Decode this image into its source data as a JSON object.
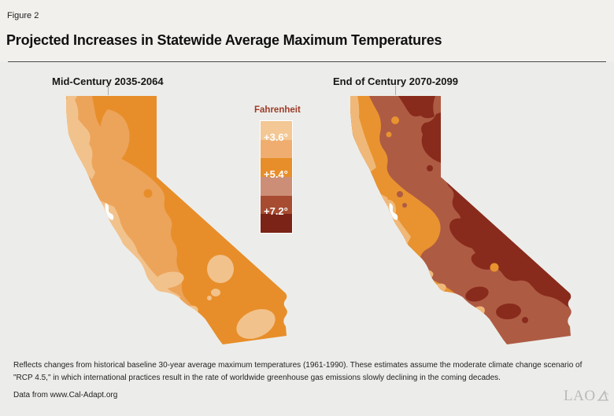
{
  "figure": {
    "label": "Figure 2",
    "title": "Projected Increases in Statewide Average Maximum Temperatures"
  },
  "maps": {
    "left": {
      "title": "Mid-Century 2035-2064"
    },
    "right": {
      "title": "End of Century 2070-2099"
    }
  },
  "legend": {
    "title": "Fahrenheit",
    "labels": [
      "+3.6°",
      "+5.4°",
      "+7.2°"
    ]
  },
  "notes": {
    "body": "Reflects changes from historical baseline 30-year average maximum temperatures (1961-1990). These estimates assume the moderate climate change scenario of \"RCP 4.5,\" in which international practices result in the rate of worldwide greenhouse gas emissions slowly declining in the coming decades.",
    "source": "Data from www.Cal-Adapt.org"
  },
  "logo_text": "LAO",
  "palette": {
    "background": "#ECEDEA",
    "header_background": "#F2F0ED",
    "rule": "#4A4A4A",
    "legend_title_color": "#9E3A28",
    "legend_bands": [
      "#F3C895",
      "#EFAE6F",
      "#E78E2A",
      "#CC8E77",
      "#A74B31",
      "#7B2316"
    ],
    "left_map": {
      "light": "#F2C28C",
      "base": "#ECA45B",
      "dark": "#E78E2A",
      "bay": "#FDFDFC"
    },
    "right_map": {
      "light": "#F0B878",
      "orange": "#E8932F",
      "base": "#AE5B44",
      "dark": "#882B1C",
      "bay": "#FDFDFC"
    },
    "logo_color": "#B7BABA"
  },
  "chart_data": {
    "type": "heatmap",
    "title": "Projected Increases in Statewide Average Maximum Temperatures",
    "geography": "California (two state maps)",
    "unit": "degrees Fahrenheit above 1961-1990 baseline",
    "legend_title": "Fahrenheit",
    "scale_ticks": [
      "+3.6°",
      "+5.4°",
      "+7.2°"
    ],
    "scale_values_f": [
      3.6,
      5.4,
      7.2
    ],
    "legend_band_colors": [
      "#F3C895",
      "#EFAE6F",
      "#E78E2A",
      "#CC8E77",
      "#A74B31",
      "#7B2316"
    ],
    "panels": [
      {
        "label": "Mid-Century 2035-2064",
        "dominant_range_f": "+3.6 to +5.4",
        "pattern": "lightest (~+3.6°) along northwest and central coast and small southeast desert pockets; mid orange statewide; darker (~+5.4°) across the far north and the eastern/southeastern interior"
      },
      {
        "label": "End of Century 2070-2099",
        "dominant_range_f": "+5.4 to more than +7.2",
        "pattern": "orange (~+5.4°) swath along the coast and Central Valley with lighter coastal fringe; terracotta (~+6°-7°) across the interior; darkest (>+7.2°) blobs in the northeast, along the Nevada border, and in the southern interior"
      }
    ],
    "scenario": "RCP 4.5",
    "source": "www.Cal-Adapt.org"
  }
}
